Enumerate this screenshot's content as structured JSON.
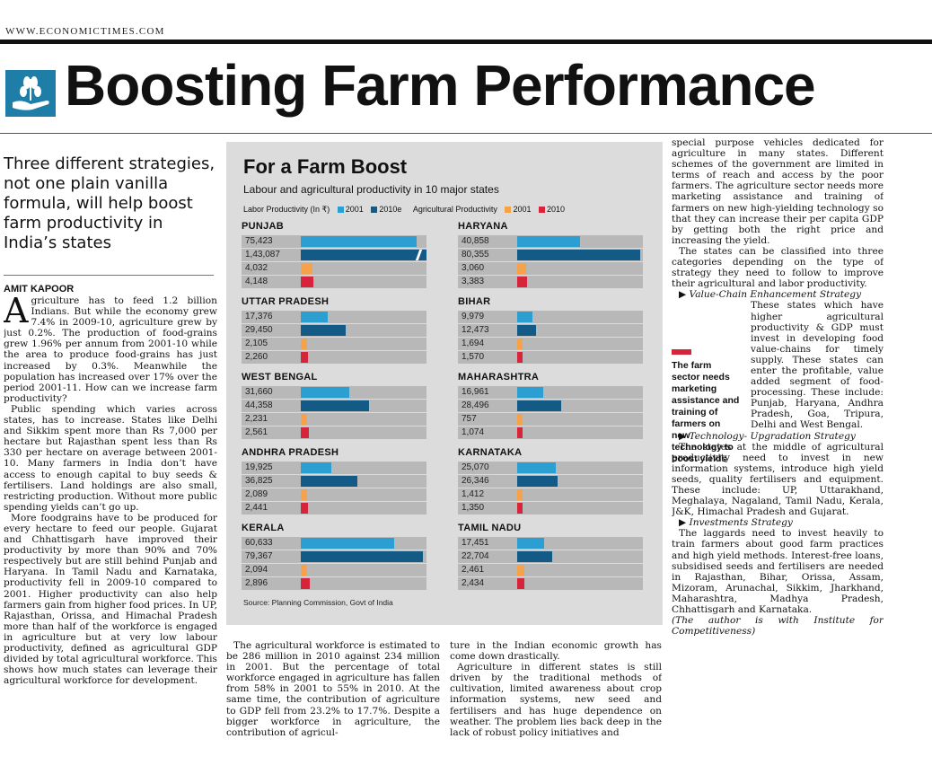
{
  "masthead": {
    "site": "WWW.ECONOMICTIMES.COM"
  },
  "headline": "Boosting Farm Performance",
  "deck": "Three different strategies, not one plain vanilla formula, will help boost farm productivity in India’s states",
  "byline": "AMIT KAPOOR",
  "colors": {
    "blue_2001": "#2b9fd1",
    "blue_2010e": "#145a86",
    "orange_2001": "#f5a24a",
    "red_2010": "#d6243a",
    "logo": "#1f7ea8"
  },
  "icons": [
    "farm-logo-icon",
    "triangle-right-icon"
  ],
  "article": {
    "col1": {
      "drop": "A",
      "p1": "griculture has to feed 1.2 billion Indians. But while the economy grew 7.4% in 2009-10, agriculture grew by just 0.2%. The production of food-grains grew 1.96% per annum from 2001-10 while the area to produce food-grains has just increased by 0.3%. Meanwhile the population has increased over 17% over the period 2001-11. How can we increase farm productivity?",
      "p2": "Public spending which varies across states, has to increase. States like Delhi and Sikkim spent more than Rs 7,000 per hectare but Rajasthan spent less than Rs 330 per hectare on average between 2001-10. Many farmers in India don’t have access to enough capital to buy seeds & fertilisers. Land holdings are also small, restricting production. Without more public spending yields can’t go up.",
      "p3": "More foodgrains have to be produced for every hectare to feed our people. Gujarat and Chhattisgarh have improved their productivity by more than 90% and 70% respectively but are still behind Punjab and Haryana. In Tamil Nadu and Karnataka, productivity fell in 2009-10 compared to 2001. Higher productivity can also help farmers gain from higher food prices. In UP, Rajasthan, Orissa, and Himachal Pradesh more than half of the workforce is engaged in agriculture but at very low labour productivity, defined as agricultural GDP divided by total agricultural workforce. This shows how much states can leverage their agricultural workforce for development."
    },
    "col2": {
      "p1": "The agricultural workforce is estimated to be 286 million in 2010 against 234 million in 2001. But the percentage of total workforce engaged in agriculture has fallen from 58% in 2001 to 55% in 2010. At the same time, the contribution of agriculture to GDP fell from 23.2% to 17.7%. Despite a bigger workforce in agriculture, the contribution of agricul-"
    },
    "col3": {
      "p1": "ture in the Indian economic growth has come down drastically.",
      "p2": "Agriculture in different states is still driven by the traditional methods of cultivation, limited awareness about crop information systems, new seed and fertilisers and has huge dependence on weather. The problem lies back deep in the lack of robust policy initiatives and"
    },
    "col4": {
      "p1": "special purpose vehicles dedicated for agriculture in many states. Different schemes of the government are limited in terms of reach and access by the poor farmers. The agriculture sector needs more marketing assistance and training of farmers on new high-yielding technology so that they can increase their per capita GDP by getting both the right price and increasing the yield.",
      "p2": "The states can be classified into three categories depending on the type of strategy they need to follow to improve their agricultural and labor productivity.",
      "h1": "Value-Chain Enhancement Strategy",
      "p3": "These states which have higher agricultural productivity & GDP must invest in developing food value-chains for timely supply. These states can enter the profitable, value added segment of food-processing. These include: Punjab, Haryana, Andhra Pradesh, Goa, Tripura, Delhi and West Bengal.",
      "h2": "Technology- Upgradation Strategy",
      "p4": "The states at the middle of agricultural productivity need to invest in new information systems, introduce high yield seeds, quality fertilisers and equipment. These include: UP, Uttarakhand, Meghalaya, Nagaland, Tamil Nadu, Kerala, J&K, Himachal Pradesh and Gujarat.",
      "h3": "Investments Strategy",
      "p5": "The laggards need to invest heavily to train farmers about good farm practices and high yield methods. Interest-free loans, subsidised seeds and fertilisers are needed in Rajasthan, Bihar, Orissa, Assam, Mizoram, Arunachal, Sikkim, Jharkhand, Maharashtra, Madhya Pradesh, Chhattisgarh and Karnataka.",
      "credit": "(The author is with Institute for Competitiveness)"
    }
  },
  "pullquote": "The farm sector needs marketing assistance and training of farmers on new technology to boost yields",
  "chart_panel": {
    "title": "For a Farm Boost",
    "subtitle": "Labour and agricultural productivity in 10 major states",
    "legend": {
      "labor": "Labor Productivity (In ₹)",
      "labor_2001": "2001",
      "labor_2010e": "2010e",
      "agri": "Agricultural Productivity",
      "agri_2001": "2001",
      "agri_2010": "2010"
    },
    "source": "Source: Planning Commission, Govt of India"
  },
  "chart_data": {
    "type": "bar",
    "title": "For a Farm Boost",
    "subtitle": "Labour and agricultural productivity in 10 major states",
    "series": [
      {
        "name": "Labor Productivity 2001"
      },
      {
        "name": "Labor Productivity 2010e"
      },
      {
        "name": "Agricultural Productivity 2001"
      },
      {
        "name": "Agricultural Productivity 2010"
      }
    ],
    "states": [
      {
        "name": "PUNJAB",
        "labels": [
          "75,423",
          "1,43,087",
          "4,032",
          "4,148"
        ],
        "values": [
          75423,
          143087,
          4032,
          4148
        ]
      },
      {
        "name": "UTTAR PRADESH",
        "labels": [
          "17,376",
          "29,450",
          "2,105",
          "2,260"
        ],
        "values": [
          17376,
          29450,
          2105,
          2260
        ]
      },
      {
        "name": "WEST BENGAL",
        "labels": [
          "31,660",
          "44,358",
          "2,231",
          "2,561"
        ],
        "values": [
          31660,
          44358,
          2231,
          2561
        ]
      },
      {
        "name": "ANDHRA PRADESH",
        "labels": [
          "19,925",
          "36,825",
          "2,089",
          "2,441"
        ],
        "values": [
          19925,
          36825,
          2089,
          2441
        ]
      },
      {
        "name": "KERALA",
        "labels": [
          "60,633",
          "79,367",
          "2,094",
          "2,896"
        ],
        "values": [
          60633,
          79367,
          2094,
          2896
        ]
      },
      {
        "name": "HARYANA",
        "labels": [
          "40,858",
          "80,355",
          "3,060",
          "3,383"
        ],
        "values": [
          40858,
          80355,
          3060,
          3383
        ]
      },
      {
        "name": "BIHAR",
        "labels": [
          "9,979",
          "12,473",
          "1,694",
          "1,570"
        ],
        "values": [
          9979,
          12473,
          1694,
          1570
        ]
      },
      {
        "name": "MAHARASHTRA",
        "labels": [
          "16,961",
          "28,496",
          "757",
          "1,074"
        ],
        "values": [
          16961,
          28496,
          757,
          1074
        ]
      },
      {
        "name": "KARNATAKA",
        "labels": [
          "25,070",
          "26,346",
          "1,412",
          "1,350"
        ],
        "values": [
          25070,
          26346,
          1412,
          1350
        ]
      },
      {
        "name": "TAMIL NADU",
        "labels": [
          "17,451",
          "22,704",
          "2,461",
          "2,434"
        ],
        "values": [
          17451,
          22704,
          2461,
          2434
        ]
      }
    ],
    "source": "Source: Planning Commission, Govt of India"
  }
}
